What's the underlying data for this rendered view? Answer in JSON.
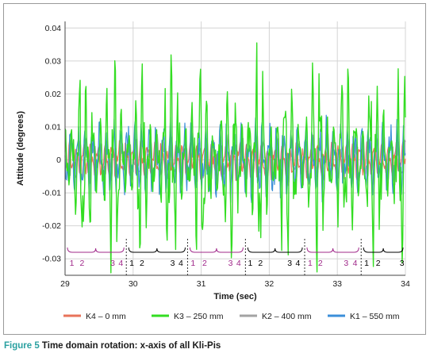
{
  "chart_data": {
    "type": "line",
    "title": "",
    "xlabel": "Time (sec)",
    "ylabel": "Attitude (degrees)",
    "xlim": [
      29,
      34
    ],
    "ylim": [
      -0.035,
      0.042
    ],
    "xticks": [
      "29",
      "30",
      "31",
      "32",
      "33",
      "34"
    ],
    "yticks": [
      "0.04",
      "0.03",
      "0.02",
      "0.01",
      "0",
      "-0.01",
      "-0.02",
      "-0.03"
    ],
    "grid": true,
    "legend_position": "bottom",
    "series": [
      {
        "name": "K4 – 0 mm",
        "color": "#e8735a",
        "amplitude": 0.006
      },
      {
        "name": "K3 – 250 mm",
        "color": "#33dd22",
        "amplitude": 0.03
      },
      {
        "name": "K2 – 400 mm",
        "color": "#a3a3a3",
        "amplitude": 0.008
      },
      {
        "name": "K1 – 550 mm",
        "color": "#3b8fd9",
        "amplitude": 0.013
      }
    ],
    "phase_dividers_x": [
      29.9,
      30.8,
      31.65,
      32.52,
      33.35
    ],
    "phase_brackets": [
      {
        "x0": 29.0,
        "x1": 29.9,
        "color": "#a0288a",
        "labels": [
          {
            "x": 29.1,
            "text": "1"
          },
          {
            "x": 29.25,
            "text": "2"
          },
          {
            "x": 29.7,
            "text": "3"
          },
          {
            "x": 29.82,
            "text": "4"
          }
        ]
      },
      {
        "x0": 29.9,
        "x1": 30.8,
        "color": "#000000",
        "labels": [
          {
            "x": 29.98,
            "text": "1"
          },
          {
            "x": 30.13,
            "text": "2"
          },
          {
            "x": 30.58,
            "text": "3"
          },
          {
            "x": 30.7,
            "text": "4"
          }
        ]
      },
      {
        "x0": 30.8,
        "x1": 31.65,
        "color": "#a0288a",
        "labels": [
          {
            "x": 30.88,
            "text": "1"
          },
          {
            "x": 31.05,
            "text": "2"
          },
          {
            "x": 31.43,
            "text": "3"
          },
          {
            "x": 31.55,
            "text": "4"
          }
        ]
      },
      {
        "x0": 31.65,
        "x1": 32.52,
        "color": "#000000",
        "labels": [
          {
            "x": 31.72,
            "text": "1"
          },
          {
            "x": 31.87,
            "text": "2"
          },
          {
            "x": 32.3,
            "text": "3"
          },
          {
            "x": 32.42,
            "text": "4"
          }
        ]
      },
      {
        "x0": 32.52,
        "x1": 33.35,
        "color": "#a0288a",
        "labels": [
          {
            "x": 32.6,
            "text": "1"
          },
          {
            "x": 32.75,
            "text": "2"
          },
          {
            "x": 33.13,
            "text": "3"
          },
          {
            "x": 33.26,
            "text": "4"
          }
        ]
      },
      {
        "x0": 33.35,
        "x1": 34.0,
        "color": "#000000",
        "labels": [
          {
            "x": 33.43,
            "text": "1"
          },
          {
            "x": 33.6,
            "text": "2"
          },
          {
            "x": 33.95,
            "text": "3"
          }
        ]
      }
    ]
  },
  "caption": {
    "lead": "Figure 5",
    "text": " Time domain rotation: x-axis of all Kli-Pis"
  }
}
